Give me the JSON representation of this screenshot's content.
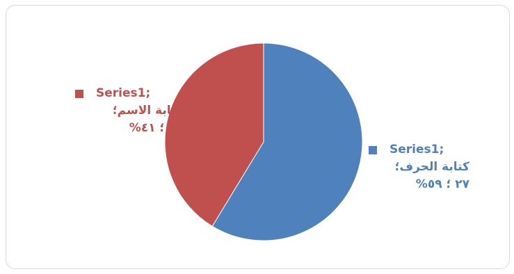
{
  "chart_data": {
    "type": "pie",
    "slices": [
      {
        "series": "Series1",
        "category": "كتابة الحرف",
        "value": 27,
        "percent": 59,
        "color": "#4f81bd",
        "label_line1": "Series1;",
        "label_line2": "كتابة الحرف؛",
        "label_line3": "٢٧ ؛ ٥٩%"
      },
      {
        "series": "Series1",
        "category": "كتابة الاسم",
        "value": 19,
        "percent": 41,
        "color": "#c0504d",
        "label_line1": "Series1;",
        "label_line2": "كتابة الاسم؛",
        "label_line3": "١٩ ؛ ٤١%"
      }
    ]
  }
}
